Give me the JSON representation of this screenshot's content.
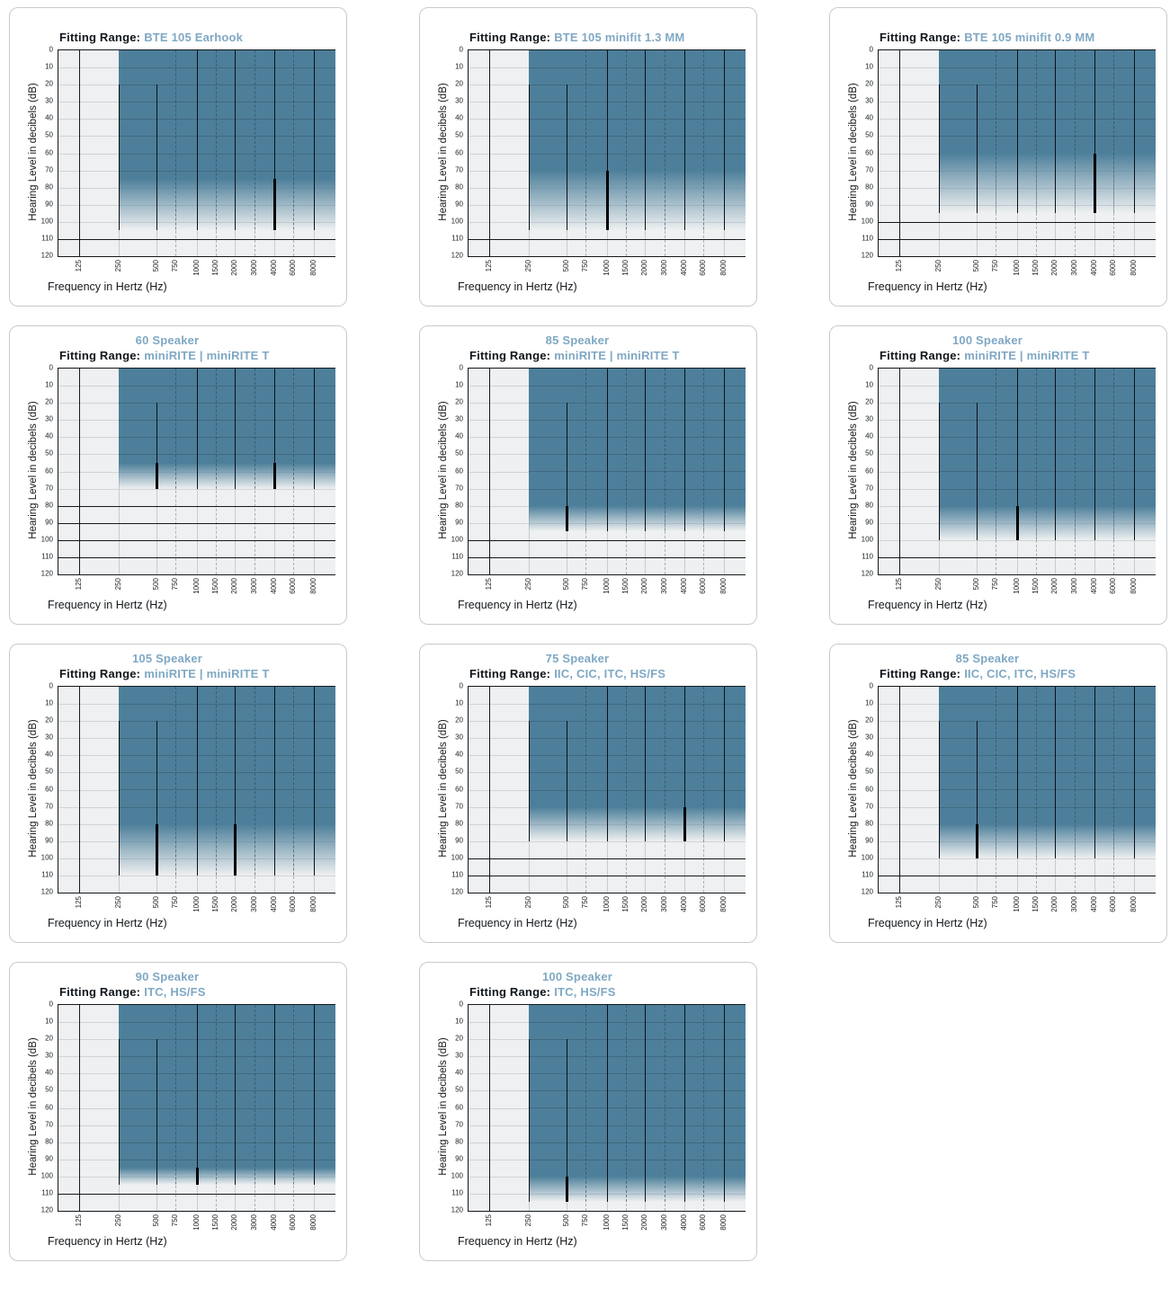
{
  "palette": {
    "range_fill": "#4D7F9A",
    "accent_text": "#7FA8C4",
    "dark_text": "#10161c",
    "plot_background": "#eef0f1",
    "grid_light": "#cfd4d7",
    "line_dark": "#14181c"
  },
  "labels": {
    "fitting_label": "Fitting Range:"
  },
  "chart_data": {
    "type": "area",
    "description": "Hearing aid fitting range audiograms: shaded region = fittable hearing loss area (dB HL vs frequency). Region starts at 250 Hz, solid fill from 0 dB down to solid_to_db, fading out at fade_to_db.",
    "axes": {
      "x_label": "Frequency in Hertz (Hz)",
      "y_label": "Hearing Level in decibels (dB)",
      "y_ticks": [
        "0",
        "10",
        "20",
        "30",
        "40",
        "50",
        "60",
        "70",
        "80",
        "90",
        "100",
        "110",
        "120"
      ],
      "y_range_db": [
        0,
        120
      ],
      "x_scale": "logarithmic",
      "x_ticks": [
        {
          "hz": 125,
          "label": "125",
          "pos": 7.5,
          "dashed": false
        },
        {
          "hz": 250,
          "label": "250",
          "pos": 21.9,
          "dashed": false
        },
        {
          "hz": 500,
          "label": "500",
          "pos": 35.5,
          "dashed": false
        },
        {
          "hz": 750,
          "label": "750",
          "pos": 42.3,
          "dashed": true
        },
        {
          "hz": 1000,
          "label": "1000",
          "pos": 50.0,
          "dashed": false
        },
        {
          "hz": 1500,
          "label": "1500",
          "pos": 56.9,
          "dashed": true
        },
        {
          "hz": 2000,
          "label": "2000",
          "pos": 63.7,
          "dashed": false
        },
        {
          "hz": 3000,
          "label": "3000",
          "pos": 70.9,
          "dashed": true
        },
        {
          "hz": 4000,
          "label": "4000",
          "pos": 78.0,
          "dashed": false
        },
        {
          "hz": 6000,
          "label": "6000",
          "pos": 84.8,
          "dashed": true
        },
        {
          "hz": 8000,
          "label": "8000",
          "pos": 92.3,
          "dashed": false
        }
      ]
    },
    "charts": [
      {
        "speaker": "",
        "device": "BTE 105 Earhook",
        "range": {
          "start_hz": 250,
          "top_db": 0,
          "solid_to_db": 75,
          "fade_to_db": 105
        },
        "markers": [
          {
            "hz": 4000,
            "from_db": 75,
            "to_db": 105
          }
        ],
        "vlines": [
          {
            "hz": 250,
            "from_db": 20
          },
          {
            "hz": 500,
            "from_db": 20
          },
          {
            "hz": 1000,
            "from_db": 0
          },
          {
            "hz": 2000,
            "from_db": 0
          },
          {
            "hz": 4000,
            "from_db": 0
          },
          {
            "hz": 8000,
            "from_db": 0
          }
        ],
        "hlines_db": [
          110
        ]
      },
      {
        "speaker": "",
        "device": "BTE 105 minifit 1.3 MM",
        "range": {
          "start_hz": 250,
          "top_db": 0,
          "solid_to_db": 70,
          "fade_to_db": 105
        },
        "markers": [
          {
            "hz": 1000,
            "from_db": 70,
            "to_db": 105
          }
        ],
        "vlines": [
          {
            "hz": 250,
            "from_db": 20
          },
          {
            "hz": 500,
            "from_db": 20
          },
          {
            "hz": 1000,
            "from_db": 0
          },
          {
            "hz": 2000,
            "from_db": 0
          },
          {
            "hz": 4000,
            "from_db": 0
          },
          {
            "hz": 8000,
            "from_db": 0
          }
        ],
        "hlines_db": [
          110
        ]
      },
      {
        "speaker": "",
        "device": "BTE 105 minifit 0.9 MM",
        "range": {
          "start_hz": 250,
          "top_db": 0,
          "solid_to_db": 60,
          "fade_to_db": 95
        },
        "markers": [
          {
            "hz": 4000,
            "from_db": 60,
            "to_db": 95
          }
        ],
        "vlines": [
          {
            "hz": 250,
            "from_db": 20
          },
          {
            "hz": 500,
            "from_db": 20
          },
          {
            "hz": 1000,
            "from_db": 0
          },
          {
            "hz": 2000,
            "from_db": 0
          },
          {
            "hz": 4000,
            "from_db": 0
          },
          {
            "hz": 8000,
            "from_db": 0
          }
        ],
        "hlines_db": [
          100,
          110
        ]
      },
      {
        "speaker": "60 Speaker",
        "device": "miniRITE | miniRITE T",
        "range": {
          "start_hz": 250,
          "top_db": 0,
          "solid_to_db": 55,
          "fade_to_db": 70
        },
        "markers": [
          {
            "hz": 500,
            "from_db": 55,
            "to_db": 70
          },
          {
            "hz": 4000,
            "from_db": 55,
            "to_db": 70
          }
        ],
        "vlines": [
          {
            "hz": 500,
            "from_db": 20
          },
          {
            "hz": 1000,
            "from_db": 0
          },
          {
            "hz": 2000,
            "from_db": 0
          },
          {
            "hz": 4000,
            "from_db": 0
          },
          {
            "hz": 8000,
            "from_db": 0
          }
        ],
        "hlines_db": [
          80,
          90,
          100,
          110
        ]
      },
      {
        "speaker": "85 Speaker",
        "device": "miniRITE | miniRITE T",
        "range": {
          "start_hz": 250,
          "top_db": 0,
          "solid_to_db": 80,
          "fade_to_db": 95
        },
        "markers": [
          {
            "hz": 500,
            "from_db": 80,
            "to_db": 95
          }
        ],
        "vlines": [
          {
            "hz": 500,
            "from_db": 20
          },
          {
            "hz": 1000,
            "from_db": 0
          },
          {
            "hz": 2000,
            "from_db": 0
          },
          {
            "hz": 4000,
            "from_db": 0
          },
          {
            "hz": 8000,
            "from_db": 0
          }
        ],
        "hlines_db": [
          100,
          110
        ]
      },
      {
        "speaker": "100 Speaker",
        "device": "miniRITE | miniRITE T",
        "range": {
          "start_hz": 250,
          "top_db": 0,
          "solid_to_db": 80,
          "fade_to_db": 100
        },
        "markers": [
          {
            "hz": 1000,
            "from_db": 80,
            "to_db": 100
          }
        ],
        "vlines": [
          {
            "hz": 250,
            "from_db": 20
          },
          {
            "hz": 500,
            "from_db": 20
          },
          {
            "hz": 1000,
            "from_db": 0
          },
          {
            "hz": 2000,
            "from_db": 0
          },
          {
            "hz": 4000,
            "from_db": 0
          },
          {
            "hz": 8000,
            "from_db": 0
          }
        ],
        "hlines_db": [
          110
        ]
      },
      {
        "speaker": "105 Speaker",
        "device": "miniRITE | miniRITE T",
        "range": {
          "start_hz": 250,
          "top_db": 0,
          "solid_to_db": 80,
          "fade_to_db": 110
        },
        "markers": [
          {
            "hz": 500,
            "from_db": 80,
            "to_db": 110
          },
          {
            "hz": 2000,
            "from_db": 80,
            "to_db": 110
          }
        ],
        "vlines": [
          {
            "hz": 250,
            "from_db": 20
          },
          {
            "hz": 500,
            "from_db": 20
          },
          {
            "hz": 1000,
            "from_db": 0
          },
          {
            "hz": 2000,
            "from_db": 0
          },
          {
            "hz": 4000,
            "from_db": 0
          },
          {
            "hz": 8000,
            "from_db": 0
          }
        ],
        "hlines_db": []
      },
      {
        "speaker": "75 Speaker",
        "device": "IIC, CIC, ITC, HS/FS",
        "range": {
          "start_hz": 250,
          "top_db": 0,
          "solid_to_db": 70,
          "fade_to_db": 90
        },
        "markers": [
          {
            "hz": 4000,
            "from_db": 70,
            "to_db": 90
          }
        ],
        "vlines": [
          {
            "hz": 250,
            "from_db": 20
          },
          {
            "hz": 500,
            "from_db": 20
          },
          {
            "hz": 1000,
            "from_db": 0
          },
          {
            "hz": 2000,
            "from_db": 0
          },
          {
            "hz": 4000,
            "from_db": 0
          },
          {
            "hz": 8000,
            "from_db": 0
          }
        ],
        "hlines_db": [
          100,
          110
        ]
      },
      {
        "speaker": "85 Speaker",
        "device": "IIC, CIC, ITC, HS/FS",
        "range": {
          "start_hz": 250,
          "top_db": 0,
          "solid_to_db": 80,
          "fade_to_db": 100
        },
        "markers": [
          {
            "hz": 500,
            "from_db": 80,
            "to_db": 100
          }
        ],
        "vlines": [
          {
            "hz": 250,
            "from_db": 20
          },
          {
            "hz": 500,
            "from_db": 20
          },
          {
            "hz": 1000,
            "from_db": 0
          },
          {
            "hz": 2000,
            "from_db": 0
          },
          {
            "hz": 4000,
            "from_db": 0
          },
          {
            "hz": 8000,
            "from_db": 0
          }
        ],
        "hlines_db": [
          110
        ]
      },
      {
        "speaker": "90 Speaker",
        "device": "ITC, HS/FS",
        "range": {
          "start_hz": 250,
          "top_db": 0,
          "solid_to_db": 95,
          "fade_to_db": 105
        },
        "markers": [
          {
            "hz": 1000,
            "from_db": 95,
            "to_db": 105
          }
        ],
        "vlines": [
          {
            "hz": 250,
            "from_db": 20
          },
          {
            "hz": 500,
            "from_db": 20
          },
          {
            "hz": 1000,
            "from_db": 0
          },
          {
            "hz": 2000,
            "from_db": 0
          },
          {
            "hz": 4000,
            "from_db": 0
          },
          {
            "hz": 8000,
            "from_db": 0
          }
        ],
        "hlines_db": [
          110
        ]
      },
      {
        "speaker": "100 Speaker",
        "device": "ITC, HS/FS",
        "range": {
          "start_hz": 250,
          "top_db": 0,
          "solid_to_db": 100,
          "fade_to_db": 115
        },
        "markers": [
          {
            "hz": 500,
            "from_db": 100,
            "to_db": 115
          }
        ],
        "vlines": [
          {
            "hz": 250,
            "from_db": 20
          },
          {
            "hz": 500,
            "from_db": 20
          },
          {
            "hz": 1000,
            "from_db": 0
          },
          {
            "hz": 2000,
            "from_db": 0
          },
          {
            "hz": 4000,
            "from_db": 0
          },
          {
            "hz": 8000,
            "from_db": 0
          }
        ],
        "hlines_db": []
      }
    ]
  }
}
